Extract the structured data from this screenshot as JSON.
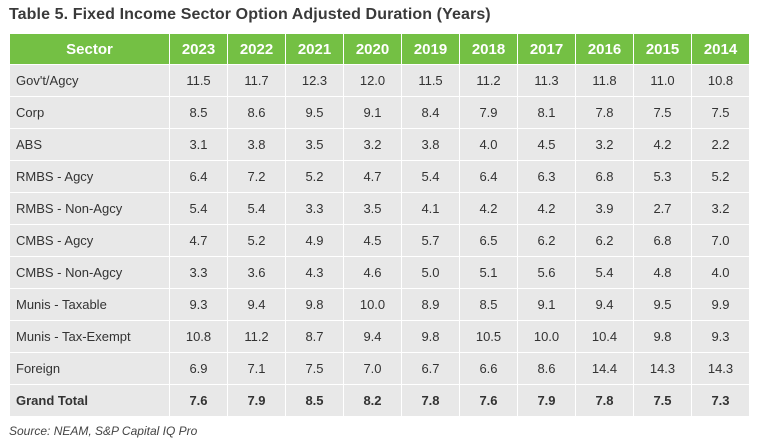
{
  "title": "Table 5. Fixed Income Sector Option Adjusted Duration (Years)",
  "header": {
    "sector": "Sector",
    "years": [
      "2023",
      "2022",
      "2021",
      "2020",
      "2019",
      "2018",
      "2017",
      "2016",
      "2015",
      "2014"
    ]
  },
  "rows": [
    {
      "sector": "Gov't/Agcy",
      "values": [
        "11.5",
        "11.7",
        "12.3",
        "12.0",
        "11.5",
        "11.2",
        "11.3",
        "11.8",
        "11.0",
        "10.8"
      ]
    },
    {
      "sector": "Corp",
      "values": [
        "8.5",
        "8.6",
        "9.5",
        "9.1",
        "8.4",
        "7.9",
        "8.1",
        "7.8",
        "7.5",
        "7.5"
      ]
    },
    {
      "sector": "ABS",
      "values": [
        "3.1",
        "3.8",
        "3.5",
        "3.2",
        "3.8",
        "4.0",
        "4.5",
        "3.2",
        "4.2",
        "2.2"
      ]
    },
    {
      "sector": "RMBS - Agcy",
      "values": [
        "6.4",
        "7.2",
        "5.2",
        "4.7",
        "5.4",
        "6.4",
        "6.3",
        "6.8",
        "5.3",
        "5.2"
      ]
    },
    {
      "sector": "RMBS - Non-Agcy",
      "values": [
        "5.4",
        "5.4",
        "3.3",
        "3.5",
        "4.1",
        "4.2",
        "4.2",
        "3.9",
        "2.7",
        "3.2"
      ]
    },
    {
      "sector": "CMBS - Agcy",
      "values": [
        "4.7",
        "5.2",
        "4.9",
        "4.5",
        "5.7",
        "6.5",
        "6.2",
        "6.2",
        "6.8",
        "7.0"
      ]
    },
    {
      "sector": "CMBS - Non-Agcy",
      "values": [
        "3.3",
        "3.6",
        "4.3",
        "4.6",
        "5.0",
        "5.1",
        "5.6",
        "5.4",
        "4.8",
        "4.0"
      ]
    },
    {
      "sector": "Munis - Taxable",
      "values": [
        "9.3",
        "9.4",
        "9.8",
        "10.0",
        "8.9",
        "8.5",
        "9.1",
        "9.4",
        "9.5",
        "9.9"
      ]
    },
    {
      "sector": "Munis - Tax-Exempt",
      "values": [
        "10.8",
        "11.2",
        "8.7",
        "9.4",
        "9.8",
        "10.5",
        "10.0",
        "10.4",
        "9.8",
        "9.3"
      ]
    },
    {
      "sector": "Foreign",
      "values": [
        "6.9",
        "7.1",
        "7.5",
        "7.0",
        "6.7",
        "6.6",
        "8.6",
        "14.4",
        "14.3",
        "14.3"
      ]
    }
  ],
  "total": {
    "sector": "Grand Total",
    "values": [
      "7.6",
      "7.9",
      "8.5",
      "8.2",
      "7.8",
      "7.6",
      "7.9",
      "7.8",
      "7.5",
      "7.3"
    ]
  },
  "source": "Source: NEAM, S&P Capital IQ Pro",
  "colors": {
    "header_bg": "#74c044",
    "row_bg": "#e8e8e8"
  }
}
